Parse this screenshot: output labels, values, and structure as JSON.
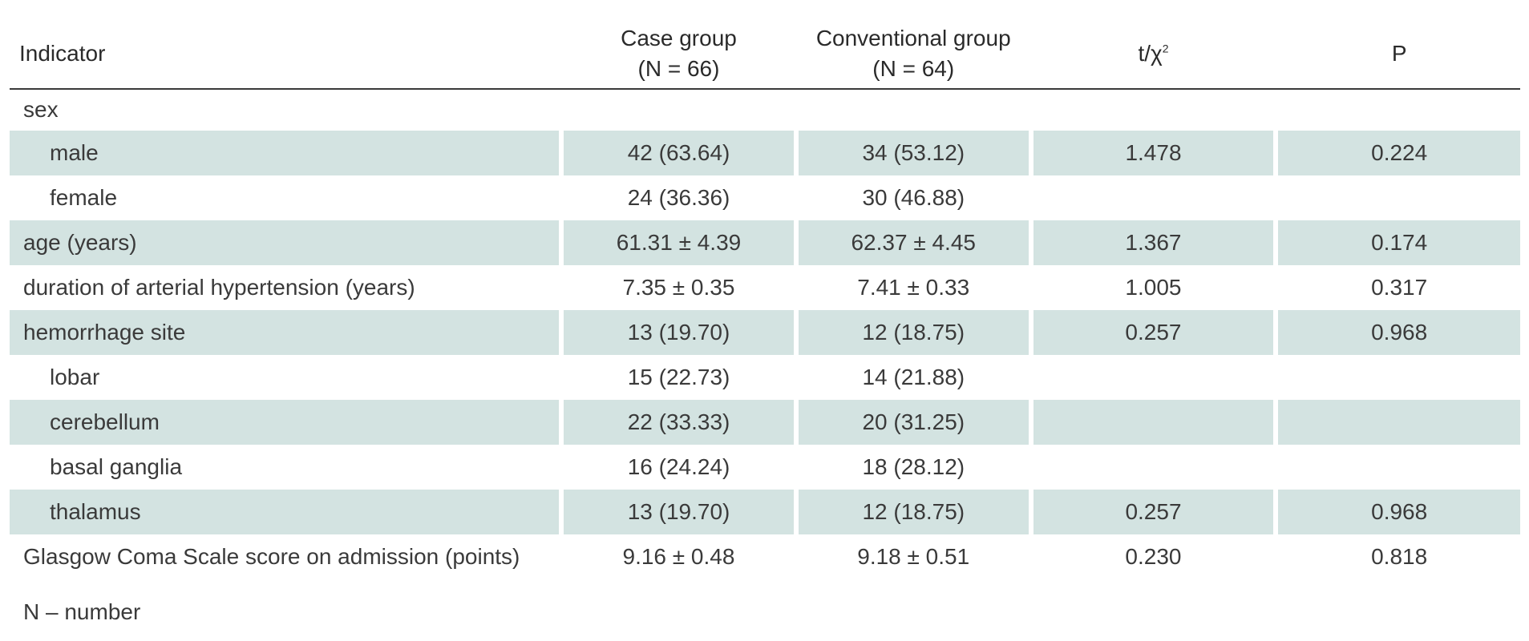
{
  "table": {
    "headers": {
      "indicator": "Indicator",
      "case_line1": "Case group",
      "case_line2": "(N = 66)",
      "conv_line1": "Conventional group",
      "conv_line2": "(N = 64)",
      "stat": "t/χ",
      "stat_sup": "2",
      "p": "P"
    },
    "rows": [
      {
        "label": "sex",
        "case": "",
        "conv": "",
        "stat": "",
        "p": "",
        "sub": false,
        "shaded": false
      },
      {
        "label": "male",
        "case": "42 (63.64)",
        "conv": "34 (53.12)",
        "stat": "1.478",
        "p": "0.224",
        "sub": true,
        "shaded": true
      },
      {
        "label": "female",
        "case": "24 (36.36)",
        "conv": "30 (46.88)",
        "stat": "",
        "p": "",
        "sub": true,
        "shaded": false
      },
      {
        "label": "age (years)",
        "case": "61.31 ± 4.39",
        "conv": "62.37 ± 4.45",
        "stat": "1.367",
        "p": "0.174",
        "sub": false,
        "shaded": true
      },
      {
        "label": "duration of arterial hypertension (years)",
        "case": "7.35 ± 0.35",
        "conv": "7.41 ± 0.33",
        "stat": "1.005",
        "p": "0.317",
        "sub": false,
        "shaded": false
      },
      {
        "label": "hemorrhage site",
        "case": "13 (19.70)",
        "conv": "12 (18.75)",
        "stat": "0.257",
        "p": "0.968",
        "sub": false,
        "shaded": true
      },
      {
        "label": "lobar",
        "case": "15 (22.73)",
        "conv": "14 (21.88)",
        "stat": "",
        "p": "",
        "sub": true,
        "shaded": false
      },
      {
        "label": "cerebellum",
        "case": "22 (33.33)",
        "conv": "20 (31.25)",
        "stat": "",
        "p": "",
        "sub": true,
        "shaded": true
      },
      {
        "label": "basal ganglia",
        "case": "16 (24.24)",
        "conv": "18 (28.12)",
        "stat": "",
        "p": "",
        "sub": true,
        "shaded": false
      },
      {
        "label": "thalamus",
        "case": "13 (19.70)",
        "conv": "12 (18.75)",
        "stat": "0.257",
        "p": "0.968",
        "sub": true,
        "shaded": true
      },
      {
        "label": "Glasgow Coma Scale score on admission (points)",
        "case": "9.16 ± 0.48",
        "conv": "9.18 ± 0.51",
        "stat": "0.230",
        "p": "0.818",
        "sub": false,
        "shaded": false
      }
    ],
    "footnote": "N – number",
    "shade_color": "#d3e3e1"
  }
}
